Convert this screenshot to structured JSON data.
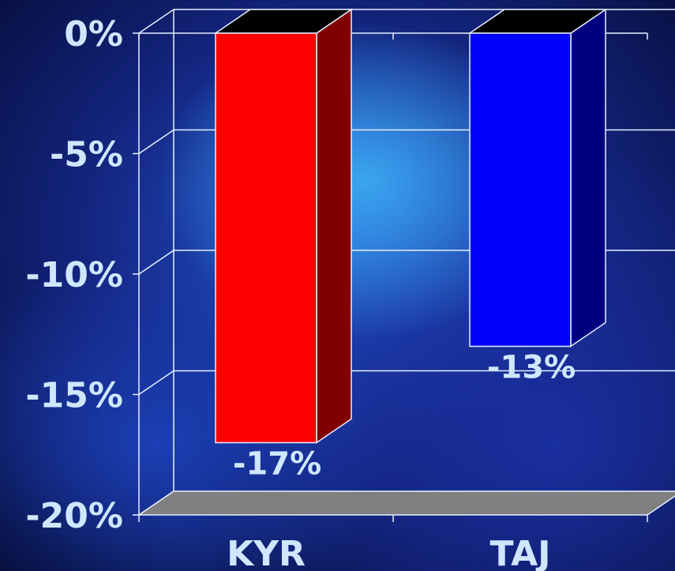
{
  "chart_data": {
    "type": "bar",
    "categories": [
      "KYR",
      "TAJ"
    ],
    "values": [
      -17,
      -13
    ],
    "data_labels": [
      "-17%",
      "-13%"
    ],
    "title": "",
    "xlabel": "",
    "ylabel": "",
    "ylim": [
      -20,
      0
    ],
    "y_ticks": [
      0,
      -5,
      -10,
      -15,
      -20
    ],
    "y_tick_labels": [
      "0%",
      "-5%",
      "-10%",
      "-15%",
      "-20%"
    ],
    "grid": true,
    "legend": "none",
    "colors": {
      "bar_front": [
        "#ff0000",
        "#0000ff"
      ],
      "bar_side": [
        "#800000",
        "#000080"
      ],
      "bar_top": "#000000",
      "floor": "#808080",
      "axis_lines": "#e6f0ff",
      "text": "#cfe6ff"
    }
  }
}
